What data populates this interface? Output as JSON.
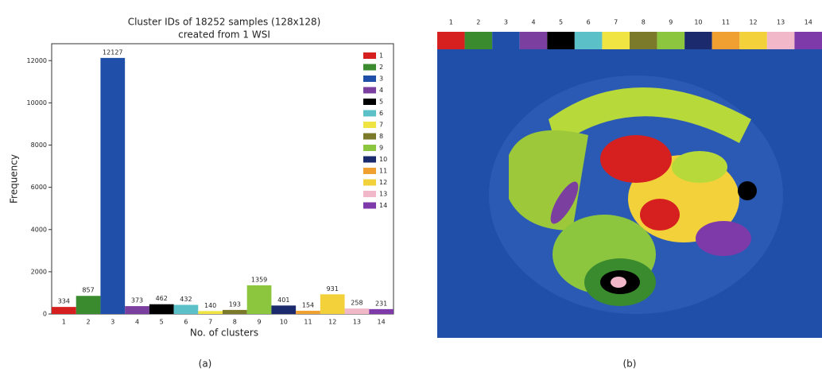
{
  "chart_data": {
    "type": "bar",
    "title": "Cluster IDs of 18252 samples (128x128)",
    "subtitle": "created from 1 WSI",
    "x_label": "No. of clusters",
    "y_label": "Frequency",
    "categories": [
      "1",
      "2",
      "3",
      "4",
      "5",
      "6",
      "7",
      "8",
      "9",
      "10",
      "11",
      "12",
      "13",
      "14"
    ],
    "values": [
      334,
      857,
      12127,
      373,
      462,
      432,
      140,
      193,
      1359,
      401,
      154,
      931,
      258,
      231
    ],
    "colors": [
      "#d62020",
      "#3a8a2e",
      "#1f4fa8",
      "#7b3fa0",
      "#000000",
      "#5bc0c8",
      "#f0e442",
      "#7a7a2a",
      "#8cc63f",
      "#1a2a6c",
      "#f0a030",
      "#f2d13a",
      "#f0b8c8",
      "#7d3aa8"
    ],
    "ylim": [
      0,
      12800
    ],
    "yticks": [
      0,
      2000,
      4000,
      6000,
      8000,
      10000,
      12000
    ],
    "legend": "upper right"
  },
  "captions": [
    "(a)",
    "(b)"
  ]
}
